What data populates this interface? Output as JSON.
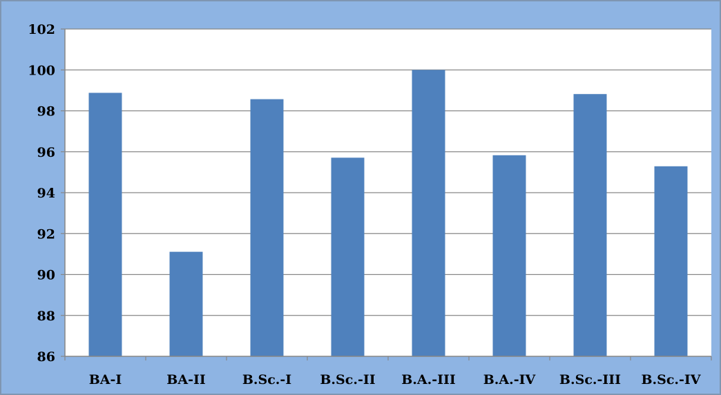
{
  "chart_data": {
    "type": "bar",
    "title": "",
    "xlabel": "",
    "ylabel": "",
    "categories": [
      "BA-I",
      "BA-II",
      "B.Sc.-I",
      "B.Sc.-II",
      "B.A.-III",
      "B.A.-IV",
      "B.Sc.-III",
      "B.Sc.-IV"
    ],
    "values": [
      98.88,
      91.11,
      98.57,
      95.71,
      100,
      95.83,
      98.82,
      95.29
    ],
    "ylim": [
      86,
      102
    ],
    "y_ticks": [
      "86",
      "88",
      "90",
      "92",
      "94",
      "96",
      "98",
      "100",
      "102"
    ],
    "grid": "horizontal",
    "legend": "none",
    "colors": {
      "bar": "#4f81bd",
      "background": "#8eb4e3",
      "plot_area": "#ffffff",
      "grid": "#868686",
      "axis": "#868686"
    }
  }
}
